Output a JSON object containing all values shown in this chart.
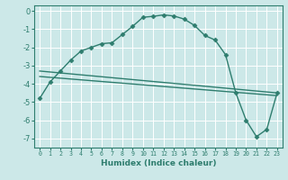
{
  "xlabel": "Humidex (Indice chaleur)",
  "ylabel": "",
  "bg_color": "#cce8e8",
  "grid_color": "#ffffff",
  "line_color": "#2e7d6e",
  "xlim": [
    -0.5,
    23.5
  ],
  "ylim": [
    -7.5,
    0.3
  ],
  "xticks": [
    0,
    1,
    2,
    3,
    4,
    5,
    6,
    7,
    8,
    9,
    10,
    11,
    12,
    13,
    14,
    15,
    16,
    17,
    18,
    19,
    20,
    21,
    22,
    23
  ],
  "yticks": [
    0,
    -1,
    -2,
    -3,
    -4,
    -5,
    -6,
    -7
  ],
  "curve1_x": [
    0,
    1,
    2,
    3,
    4,
    5,
    6,
    7,
    8,
    9,
    10,
    11,
    12,
    13,
    14,
    15,
    16,
    17,
    18,
    19,
    20,
    21,
    22,
    23
  ],
  "curve1_y": [
    -4.8,
    -3.9,
    -3.3,
    -2.7,
    -2.2,
    -2.0,
    -1.8,
    -1.75,
    -1.3,
    -0.85,
    -0.35,
    -0.3,
    -0.22,
    -0.28,
    -0.45,
    -0.8,
    -1.35,
    -1.6,
    -2.4,
    -4.5,
    -6.0,
    -6.9,
    -6.5,
    -4.5
  ],
  "curve2_x": [
    0,
    23
  ],
  "curve2_y": [
    -3.3,
    -4.5
  ],
  "curve3_x": [
    0,
    23
  ],
  "curve3_y": [
    -3.6,
    -4.65
  ],
  "marker": "D",
  "markersize": 2.5,
  "linewidth": 1.0
}
